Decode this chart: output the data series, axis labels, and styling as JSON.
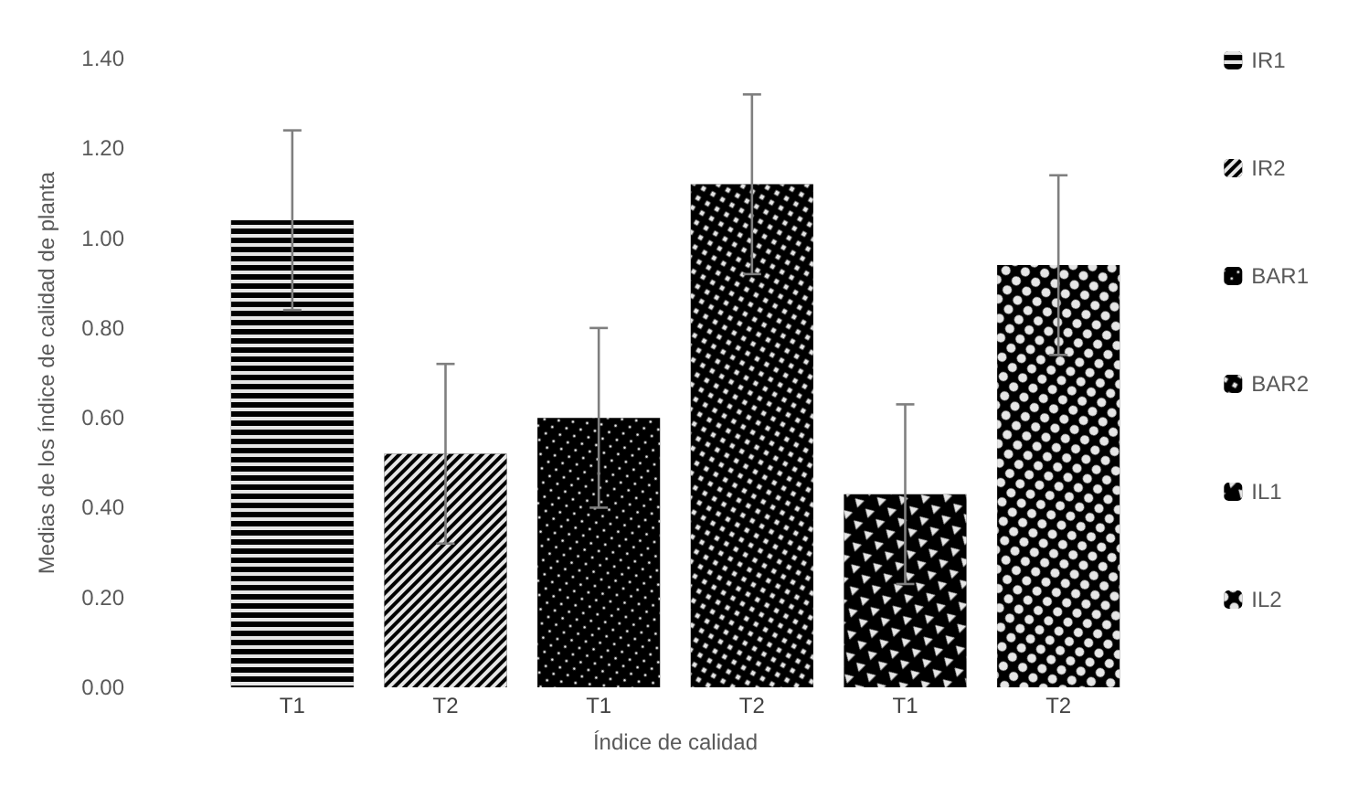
{
  "chart_data": {
    "type": "bar",
    "xlabel": "Índice de calidad",
    "ylabel": "Medias de los índice de calidad de planta",
    "categories": [
      "T1",
      "T2",
      "T1",
      "T2",
      "T1",
      "T2"
    ],
    "series": [
      {
        "name": "IR1",
        "color": "#000000",
        "values": [
          1.04,
          null,
          null,
          null,
          null,
          null
        ],
        "errors": [
          0.2,
          null,
          null,
          null,
          null,
          null
        ]
      },
      {
        "name": "IR2",
        "color": "#000000",
        "values": [
          null,
          0.52,
          null,
          null,
          null,
          null
        ],
        "errors": [
          null,
          0.2,
          null,
          null,
          null,
          null
        ]
      },
      {
        "name": "BAR1",
        "color": "#000000",
        "values": [
          null,
          null,
          0.6,
          null,
          null,
          null
        ],
        "errors": [
          null,
          null,
          0.2,
          null,
          null,
          null
        ]
      },
      {
        "name": "BAR2",
        "color": "#000000",
        "values": [
          null,
          null,
          null,
          1.12,
          null,
          null
        ],
        "errors": [
          null,
          null,
          null,
          0.2,
          null,
          null
        ]
      },
      {
        "name": "IL1",
        "color": "#000000",
        "values": [
          null,
          null,
          null,
          null,
          0.43,
          null
        ],
        "errors": [
          null,
          null,
          null,
          null,
          0.2,
          null
        ]
      },
      {
        "name": "IL2",
        "color": "#000000",
        "values": [
          null,
          null,
          null,
          null,
          null,
          0.94
        ],
        "errors": [
          null,
          null,
          null,
          null,
          null,
          0.2
        ]
      }
    ],
    "ylim": [
      0,
      1.4
    ],
    "yticks": [
      {
        "value": 0,
        "label": "0.00"
      },
      {
        "value": 0.2,
        "label": "0.20"
      },
      {
        "value": 0.4,
        "label": "0.40"
      },
      {
        "value": 0.6,
        "label": "0.60"
      },
      {
        "value": 0.8,
        "label": "0.80"
      },
      {
        "value": 1.0,
        "label": "1.00"
      },
      {
        "value": 1.2,
        "label": "1.20"
      },
      {
        "value": 1.4,
        "label": "1.40"
      }
    ],
    "grid": false,
    "legend": "right"
  }
}
